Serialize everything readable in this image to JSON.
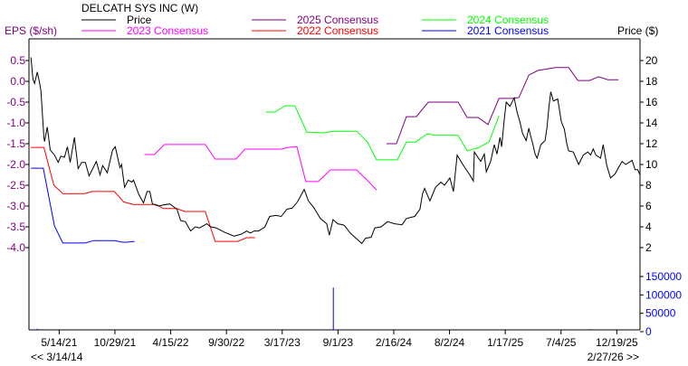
{
  "chart_data": {
    "type": "line",
    "title": "DELCATH SYS INC (W)",
    "ylabel_left": "EPS ($/sh)",
    "ylabel_right": "Price ($)",
    "xlim": [
      "2021-02-12",
      "2026-02-27"
    ],
    "eps_ylim": [
      -4.0,
      0.5
    ],
    "eps_ticks": [
      "0.5",
      "0.0",
      "-0.5",
      "-1.0",
      "-1.5",
      "-2.0",
      "-2.5",
      "-3.0",
      "-3.5",
      "-4.0"
    ],
    "price_ylim": [
      2,
      20
    ],
    "price_ticks": [
      "20",
      "18",
      "16",
      "14",
      "12",
      "10",
      "8",
      "6",
      "4",
      "2"
    ],
    "volume_ylim": [
      0,
      150000
    ],
    "volume_ticks": [
      "150000",
      "100000",
      "50000",
      "0"
    ],
    "x_ticks": [
      {
        "date": "2021-05-14",
        "label": "5/14/21"
      },
      {
        "date": "2021-10-29",
        "label": "10/29/21"
      },
      {
        "date": "2022-04-15",
        "label": "4/15/22"
      },
      {
        "date": "2022-09-30",
        "label": "9/30/22"
      },
      {
        "date": "2023-03-17",
        "label": "3/17/23"
      },
      {
        "date": "2023-09-01",
        "label": "9/1/23"
      },
      {
        "date": "2024-02-16",
        "label": "2/16/24"
      },
      {
        "date": "2024-08-02",
        "label": "8/2/24"
      },
      {
        "date": "2025-01-17",
        "label": "1/17/25"
      },
      {
        "date": "2025-07-04",
        "label": "7/4/25"
      },
      {
        "date": "2025-12-19",
        "label": "12/19/25"
      }
    ],
    "nav": {
      "prev": "<< 3/14/14",
      "next": "2/27/26 >>"
    },
    "grid": false,
    "legend_placement": "top",
    "series": [
      {
        "name": "Price",
        "axis": "price",
        "color": "#000000",
        "points": [
          [
            "2021-02-18",
            20.3
          ],
          [
            "2021-02-24",
            18.2
          ],
          [
            "2021-03-01",
            17.8
          ],
          [
            "2021-03-09",
            18.9
          ],
          [
            "2021-03-15",
            18.0
          ],
          [
            "2021-03-20",
            17.1
          ],
          [
            "2021-03-29",
            12.6
          ],
          [
            "2021-03-31",
            12.2
          ],
          [
            "2021-04-08",
            13.6
          ],
          [
            "2021-04-17",
            11.4
          ],
          [
            "2021-04-30",
            10.9
          ],
          [
            "2021-05-11",
            10.2
          ],
          [
            "2021-05-19",
            10.8
          ],
          [
            "2021-05-30",
            10.7
          ],
          [
            "2021-06-08",
            11.7
          ],
          [
            "2021-06-16",
            10.2
          ],
          [
            "2021-06-29",
            12.6
          ],
          [
            "2021-07-10",
            9.6
          ],
          [
            "2021-07-21",
            10.2
          ],
          [
            "2021-08-01",
            10.2
          ],
          [
            "2021-08-12",
            8.9
          ],
          [
            "2021-09-03",
            10.3
          ],
          [
            "2021-09-14",
            9.0
          ],
          [
            "2021-09-22",
            9.9
          ],
          [
            "2021-10-06",
            9.2
          ],
          [
            "2021-10-22",
            11.4
          ],
          [
            "2021-10-30",
            11.7
          ],
          [
            "2021-11-13",
            9.7
          ],
          [
            "2021-11-18",
            10.0
          ],
          [
            "2021-11-27",
            7.8
          ],
          [
            "2021-12-08",
            8.5
          ],
          [
            "2021-12-19",
            8.3
          ],
          [
            "2021-12-24",
            8.5
          ],
          [
            "2022-01-09",
            7.1
          ],
          [
            "2022-01-23",
            6.3
          ],
          [
            "2022-02-03",
            7.4
          ],
          [
            "2022-02-11",
            7.4
          ],
          [
            "2022-02-19",
            6.2
          ],
          [
            "2022-03-10",
            6.0
          ],
          [
            "2022-03-24",
            6.1
          ],
          [
            "2022-04-12",
            6.2
          ],
          [
            "2022-05-04",
            5.7
          ],
          [
            "2022-05-15",
            4.6
          ],
          [
            "2022-05-29",
            4.5
          ],
          [
            "2022-06-14",
            3.6
          ],
          [
            "2022-06-28",
            4.0
          ],
          [
            "2022-07-11",
            3.9
          ],
          [
            "2022-08-02",
            4.3
          ],
          [
            "2022-08-13",
            4.0
          ],
          [
            "2022-08-30",
            3.9
          ],
          [
            "2022-09-23",
            3.5
          ],
          [
            "2022-10-23",
            3.1
          ],
          [
            "2022-11-14",
            3.3
          ],
          [
            "2022-11-30",
            3.6
          ],
          [
            "2022-12-11",
            3.4
          ],
          [
            "2022-12-22",
            3.6
          ],
          [
            "2023-01-05",
            3.6
          ],
          [
            "2023-01-24",
            4.0
          ],
          [
            "2023-02-07",
            5.0
          ],
          [
            "2023-02-26",
            5.1
          ],
          [
            "2023-03-14",
            5.0
          ],
          [
            "2023-03-31",
            5.7
          ],
          [
            "2023-04-16",
            5.8
          ],
          [
            "2023-05-02",
            6.4
          ],
          [
            "2023-05-22",
            7.6
          ],
          [
            "2023-06-04",
            6.5
          ],
          [
            "2023-06-21",
            5.8
          ],
          [
            "2023-07-10",
            4.8
          ],
          [
            "2023-07-29",
            4.3
          ],
          [
            "2023-08-06",
            3.2
          ],
          [
            "2023-08-17",
            4.7
          ],
          [
            "2023-08-31",
            4.3
          ],
          [
            "2023-09-16",
            4.2
          ],
          [
            "2023-09-21",
            4.1
          ],
          [
            "2023-10-08",
            3.4
          ],
          [
            "2023-11-12",
            2.4
          ],
          [
            "2023-11-23",
            2.9
          ],
          [
            "2023-12-10",
            3.0
          ],
          [
            "2023-12-21",
            3.9
          ],
          [
            "2024-01-09",
            4.0
          ],
          [
            "2024-01-28",
            4.5
          ],
          [
            "2024-02-19",
            4.3
          ],
          [
            "2024-03-12",
            4.2
          ],
          [
            "2024-03-25",
            4.8
          ],
          [
            "2024-04-19",
            5.0
          ],
          [
            "2024-05-05",
            5.7
          ],
          [
            "2024-05-13",
            7.2
          ],
          [
            "2024-05-19",
            7.7
          ],
          [
            "2024-06-04",
            6.5
          ],
          [
            "2024-06-21",
            7.8
          ],
          [
            "2024-07-07",
            8.3
          ],
          [
            "2024-07-18",
            8.0
          ],
          [
            "2024-08-03",
            8.7
          ],
          [
            "2024-08-14",
            7.4
          ],
          [
            "2024-08-25",
            10.9
          ],
          [
            "2024-09-11",
            10.0
          ],
          [
            "2024-10-02",
            9.0
          ],
          [
            "2024-10-13",
            8.4
          ],
          [
            "2024-10-16",
            11.2
          ],
          [
            "2024-11-04",
            10.3
          ],
          [
            "2024-11-15",
            11.0
          ],
          [
            "2024-11-21",
            9.3
          ],
          [
            "2024-12-04",
            10.3
          ],
          [
            "2024-12-15",
            11.9
          ],
          [
            "2024-12-23",
            11.0
          ],
          [
            "2025-01-01",
            12.6
          ],
          [
            "2025-01-06",
            11.7
          ],
          [
            "2025-01-14",
            14.3
          ],
          [
            "2025-01-20",
            16.0
          ],
          [
            "2025-01-31",
            15.6
          ],
          [
            "2025-02-08",
            16.1
          ],
          [
            "2025-02-13",
            16.4
          ],
          [
            "2025-02-22",
            15.0
          ],
          [
            "2025-03-02",
            14.1
          ],
          [
            "2025-03-10",
            13.0
          ],
          [
            "2025-03-21",
            12.3
          ],
          [
            "2025-03-29",
            13.5
          ],
          [
            "2025-04-03",
            12.8
          ],
          [
            "2025-04-09",
            12.1
          ],
          [
            "2025-04-17",
            11.0
          ],
          [
            "2025-04-23",
            10.6
          ],
          [
            "2025-05-04",
            11.9
          ],
          [
            "2025-05-17",
            12.3
          ],
          [
            "2025-05-23",
            13.6
          ],
          [
            "2025-05-28",
            15.4
          ],
          [
            "2025-06-03",
            17.0
          ],
          [
            "2025-06-11",
            16.1
          ],
          [
            "2025-06-24",
            16.3
          ],
          [
            "2025-07-05",
            14.1
          ],
          [
            "2025-07-14",
            13.4
          ],
          [
            "2025-07-22",
            11.9
          ],
          [
            "2025-07-27",
            11.3
          ],
          [
            "2025-08-10",
            11.2
          ],
          [
            "2025-08-26",
            10.0
          ],
          [
            "2025-09-09",
            10.9
          ],
          [
            "2025-09-23",
            11.2
          ],
          [
            "2025-10-01",
            10.9
          ],
          [
            "2025-10-09",
            11.5
          ],
          [
            "2025-10-17",
            10.9
          ],
          [
            "2025-10-31",
            10.6
          ],
          [
            "2025-11-08",
            11.9
          ],
          [
            "2025-11-19",
            9.9
          ],
          [
            "2025-11-30",
            8.7
          ],
          [
            "2025-12-14",
            9.1
          ],
          [
            "2025-12-24",
            9.7
          ],
          [
            "2026-01-04",
            10.3
          ],
          [
            "2026-01-15",
            10.0
          ],
          [
            "2026-02-03",
            10.4
          ],
          [
            "2026-02-12",
            9.5
          ],
          [
            "2026-02-20",
            9.5
          ],
          [
            "2026-02-27",
            9.0
          ]
        ]
      },
      {
        "name": "2025 Consensus",
        "axis": "eps",
        "color": "#800080",
        "points": [
          [
            "2024-01-25",
            -1.5
          ],
          [
            "2024-02-24",
            -1.5
          ],
          [
            "2024-03-25",
            -0.85
          ],
          [
            "2024-04-24",
            -0.85
          ],
          [
            "2024-05-30",
            -0.5
          ],
          [
            "2024-08-28",
            -0.5
          ],
          [
            "2024-09-24",
            -0.87
          ],
          [
            "2024-10-27",
            -0.87
          ],
          [
            "2024-11-26",
            -1.04
          ],
          [
            "2024-12-29",
            -0.41
          ],
          [
            "2025-02-08",
            -0.41
          ],
          [
            "2025-02-27",
            -0.39
          ],
          [
            "2025-03-29",
            0.15
          ],
          [
            "2025-04-25",
            0.26
          ],
          [
            "2025-06-17",
            0.33
          ],
          [
            "2025-07-27",
            0.33
          ],
          [
            "2025-08-24",
            0.02
          ],
          [
            "2025-09-28",
            0.02
          ],
          [
            "2025-10-25",
            0.11
          ],
          [
            "2025-11-22",
            0.04
          ],
          [
            "2025-12-24",
            0.04
          ]
        ]
      },
      {
        "name": "2024 Consensus",
        "axis": "eps",
        "color": "#00ff00",
        "points": [
          [
            "2023-01-27",
            -0.74
          ],
          [
            "2023-02-23",
            -0.74
          ],
          [
            "2023-03-25",
            -0.59
          ],
          [
            "2023-04-24",
            -0.59
          ],
          [
            "2023-05-30",
            -1.22
          ],
          [
            "2023-07-18",
            -1.24
          ],
          [
            "2023-08-20",
            -1.2
          ],
          [
            "2023-10-27",
            -1.2
          ],
          [
            "2023-11-29",
            -1.46
          ],
          [
            "2023-12-26",
            -1.89
          ],
          [
            "2024-02-27",
            -1.89
          ],
          [
            "2024-03-25",
            -1.46
          ],
          [
            "2024-04-22",
            -1.46
          ],
          [
            "2024-05-27",
            -1.26
          ],
          [
            "2024-06-21",
            -1.3
          ],
          [
            "2024-08-28",
            -1.3
          ],
          [
            "2024-09-24",
            -1.67
          ],
          [
            "2024-10-27",
            -1.6
          ],
          [
            "2024-11-29",
            -1.46
          ],
          [
            "2024-12-29",
            -0.83
          ]
        ]
      },
      {
        "name": "2023 Consensus",
        "axis": "eps",
        "color": "#ff00ff",
        "points": [
          [
            "2022-01-26",
            -1.76
          ],
          [
            "2022-02-25",
            -1.76
          ],
          [
            "2022-03-27",
            -1.52
          ],
          [
            "2022-07-28",
            -1.52
          ],
          [
            "2022-08-27",
            -1.87
          ],
          [
            "2022-10-29",
            -1.87
          ],
          [
            "2022-11-25",
            -1.63
          ],
          [
            "2023-03-14",
            -1.63
          ],
          [
            "2023-04-05",
            -1.59
          ],
          [
            "2023-04-30",
            -1.57
          ],
          [
            "2023-05-27",
            -2.41
          ],
          [
            "2023-07-04",
            -2.41
          ],
          [
            "2023-08-09",
            -2.13
          ],
          [
            "2023-10-27",
            -2.13
          ],
          [
            "2023-11-29",
            -2.39
          ],
          [
            "2023-12-26",
            -2.61
          ]
        ]
      },
      {
        "name": "2022 Consensus",
        "axis": "eps",
        "color": "#ff0000",
        "points": [
          [
            "2021-02-18",
            -1.59
          ],
          [
            "2021-03-29",
            -1.59
          ],
          [
            "2021-04-28",
            -2.5
          ],
          [
            "2021-05-25",
            -2.7
          ],
          [
            "2021-07-30",
            -2.7
          ],
          [
            "2021-08-21",
            -2.65
          ],
          [
            "2021-10-27",
            -2.65
          ],
          [
            "2021-11-24",
            -2.9
          ],
          [
            "2021-12-24",
            -2.96
          ],
          [
            "2022-03-02",
            -2.96
          ],
          [
            "2022-03-24",
            -3.06
          ],
          [
            "2022-05-04",
            -3.06
          ],
          [
            "2022-05-26",
            -3.13
          ],
          [
            "2022-07-28",
            -3.13
          ],
          [
            "2022-08-27",
            -3.85
          ],
          [
            "2022-11-03",
            -3.85
          ],
          [
            "2022-11-30",
            -3.76
          ],
          [
            "2022-12-25",
            -3.76
          ]
        ]
      },
      {
        "name": "2021 Consensus",
        "axis": "eps",
        "color": "#0000ff",
        "points": [
          [
            "2021-02-18",
            -2.09
          ],
          [
            "2021-03-27",
            -2.09
          ],
          [
            "2021-04-30",
            -3.48
          ],
          [
            "2021-05-25",
            -3.89
          ],
          [
            "2021-08-01",
            -3.89
          ],
          [
            "2021-08-26",
            -3.83
          ],
          [
            "2021-10-27",
            -3.83
          ],
          [
            "2021-11-21",
            -3.87
          ],
          [
            "2021-12-05",
            -3.87
          ],
          [
            "2021-12-27",
            -3.85
          ]
        ]
      }
    ],
    "volume": {
      "color": "#0000ff",
      "points": [
        [
          "2021-03-09",
          8000
        ],
        [
          "2023-08-18",
          120000
        ],
        [
          "2023-08-25",
          6000
        ],
        [
          "2023-11-10",
          3000
        ],
        [
          "2024-03-01",
          2000
        ],
        [
          "2025-01-17",
          3000
        ],
        [
          "2025-05-20",
          3000
        ],
        [
          "2025-07-04",
          6000
        ],
        [
          "2025-08-10",
          5000
        ],
        [
          "2025-10-01",
          7000
        ],
        [
          "2025-10-15",
          5000
        ],
        [
          "2025-11-08",
          4000
        ],
        [
          "2026-01-20",
          3000
        ]
      ]
    }
  }
}
